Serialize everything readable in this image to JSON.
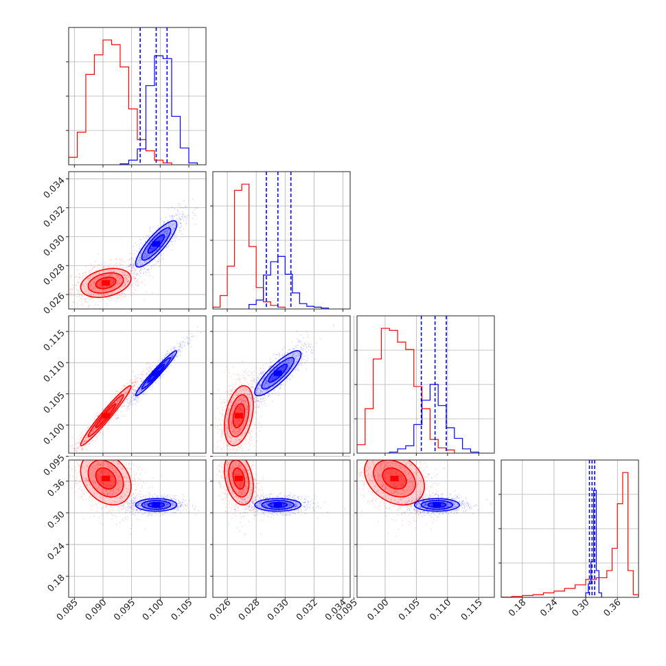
{
  "colors": {
    "red": "#ff0000",
    "blue": "#0000ff",
    "grid": "#b0b0b0",
    "axes": "#222222"
  },
  "chart_data": {
    "type": "corner",
    "grid": true,
    "parameters": [
      {
        "range": [
          0.084,
          0.108
        ],
        "ticks": [
          "0.085",
          "0.090",
          "0.095",
          "0.100",
          "0.105"
        ],
        "tick_values": [
          0.085,
          0.09,
          0.095,
          0.1,
          0.105
        ]
      },
      {
        "range": [
          0.025,
          0.0345
        ],
        "ticks": [
          "0.026",
          "0.028",
          "0.030",
          "0.032",
          "0.034"
        ],
        "tick_values": [
          0.026,
          0.028,
          0.03,
          0.032,
          0.034
        ]
      },
      {
        "range": [
          0.0955,
          0.1175
        ],
        "ticks": [
          "0.095",
          "0.100",
          "0.105",
          "0.110",
          "0.115"
        ],
        "tick_values": [
          0.095,
          0.1,
          0.105,
          0.11,
          0.115
        ]
      },
      {
        "range": [
          0.14,
          0.4
        ],
        "ticks": [
          "0.18",
          "0.24",
          "0.30",
          "0.36"
        ],
        "tick_values": [
          0.18,
          0.24,
          0.3,
          0.36
        ]
      }
    ],
    "series": [
      {
        "color": "red",
        "mean": [
          0.0905,
          0.0268,
          0.1015,
          0.365
        ],
        "std": [
          0.0022,
          0.0005,
          0.0024,
          0.025
        ],
        "corr": {
          "0-1": 0.3,
          "0-2": 0.97,
          "1-2": 0.35,
          "0-3": -0.3,
          "1-3": -0.3,
          "2-3": -0.3
        },
        "hist": [
          {
            "bins": [
              0.084,
              0.0855,
              0.087,
              0.0885,
              0.09,
              0.0915,
              0.093,
              0.0945,
              0.096,
              0.0975,
              0.099,
              0.1005,
              0.102
            ],
            "values": [
              0.08,
              0.35,
              0.97,
              1.18,
              1.34,
              1.29,
              1.05,
              0.6,
              0.27,
              0.15,
              0.05,
              0.02,
              0.0
            ]
          },
          {
            "bins": [
              0.025,
              0.0255,
              0.026,
              0.0265,
              0.027,
              0.0275,
              0.028,
              0.0285,
              0.029,
              0.0295,
              0.03
            ],
            "values": [
              0.02,
              0.15,
              0.48,
              1.33,
              1.4,
              0.7,
              0.24,
              0.08,
              0.04,
              0.02,
              0.01
            ]
          },
          {
            "bins": [
              0.0955,
              0.0968,
              0.0981,
              0.0994,
              0.1007,
              0.102,
              0.1033,
              0.1046,
              0.1059,
              0.1072,
              0.1085,
              0.1098,
              0.1111
            ],
            "values": [
              0.08,
              0.42,
              0.89,
              1.18,
              1.16,
              1.05,
              0.98,
              0.63,
              0.42,
              0.13,
              0.05,
              0.03,
              0.0
            ]
          },
          {
            "bins": [
              0.14,
              0.16,
              0.18,
              0.2,
              0.22,
              0.24,
              0.26,
              0.28,
              0.3,
              0.32,
              0.34,
              0.35,
              0.36,
              0.37,
              0.38,
              0.39,
              0.4
            ],
            "values": [
              0.002,
              0.01,
              0.02,
              0.03,
              0.05,
              0.07,
              0.1,
              0.14,
              0.2,
              0.22,
              0.3,
              0.55,
              1.05,
              1.4,
              0.3,
              0.03
            ]
          }
        ]
      },
      {
        "color": "blue",
        "mean": [
          0.0993,
          0.0295,
          0.1083,
          0.315
        ],
        "std": [
          0.0018,
          0.0008,
          0.0018,
          0.006
        ],
        "corr": {
          "0-1": 0.85,
          "0-2": 0.97,
          "1-2": 0.85,
          "0-3": 0.0,
          "1-3": 0.0,
          "2-3": 0.0
        },
        "quantiles": [
          [
            0.0965,
            0.0993,
            0.1012
          ],
          [
            0.0287,
            0.0295,
            0.0304
          ],
          [
            0.1058,
            0.108,
            0.1098
          ],
          [
            0.307,
            0.312,
            0.317
          ]
        ],
        "hist": [
          {
            "bins": [
              0.093,
              0.0945,
              0.096,
              0.0975,
              0.099,
              0.1005,
              0.102,
              0.1035,
              0.105,
              0.1065
            ],
            "values": [
              0.01,
              0.05,
              0.17,
              0.85,
              1.17,
              1.14,
              0.52,
              0.18,
              0.02
            ]
          },
          {
            "bins": [
              0.0275,
              0.028,
              0.0285,
              0.029,
              0.0295,
              0.03,
              0.0305,
              0.031,
              0.0315,
              0.032,
              0.0325,
              0.033
            ],
            "values": [
              0.05,
              0.1,
              0.38,
              0.53,
              0.59,
              0.39,
              0.18,
              0.06,
              0.03,
              0.02,
              0.01
            ]
          },
          {
            "bins": [
              0.1007,
              0.102,
              0.1033,
              0.1046,
              0.1059,
              0.1072,
              0.1085,
              0.1098,
              0.1111,
              0.1124,
              0.1137,
              0.115
            ],
            "values": [
              0.01,
              0.04,
              0.07,
              0.27,
              0.5,
              0.65,
              0.45,
              0.24,
              0.14,
              0.04,
              0.01
            ]
          },
          {
            "bins": [
              0.3,
              0.305,
              0.31,
              0.315,
              0.32,
              0.325,
              0.33
            ],
            "values": [
              0.05,
              0.15,
              0.4,
              1.2,
              0.3,
              0.05
            ]
          }
        ]
      }
    ]
  }
}
